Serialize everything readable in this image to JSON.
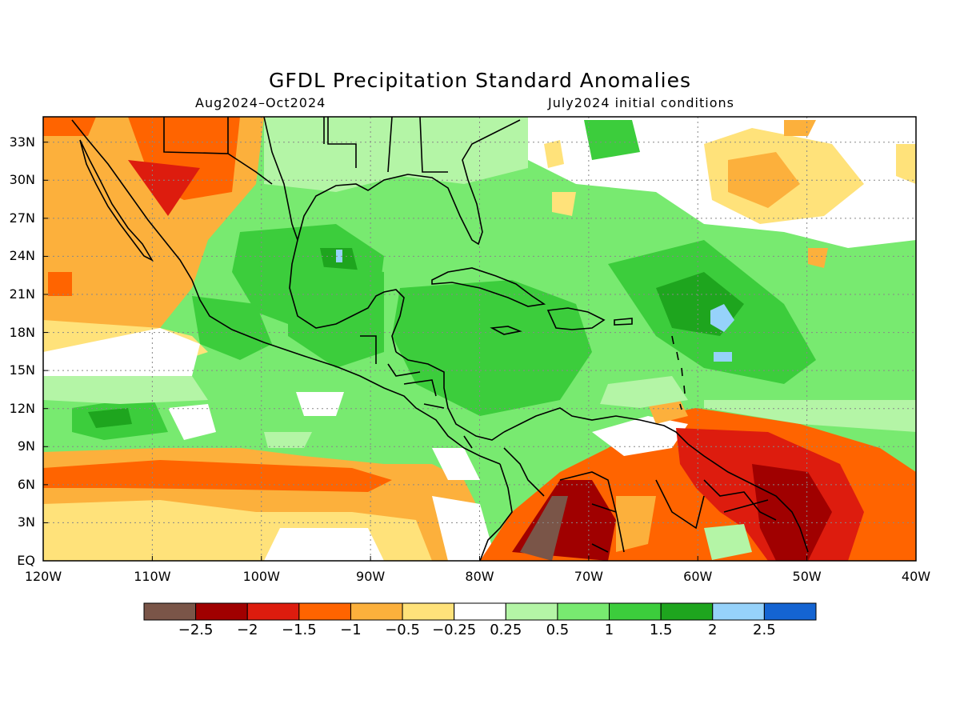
{
  "title": "GFDL Precipitation Standard Anomalies",
  "subtitle_left": "Aug2024–Oct2024",
  "subtitle_right": "July2024 initial conditions",
  "map": {
    "lon_range": [
      -120,
      -40
    ],
    "lat_range": [
      0,
      35
    ],
    "lat_ticks": [
      {
        "value": 33,
        "label": "33N"
      },
      {
        "value": 30,
        "label": "30N"
      },
      {
        "value": 27,
        "label": "27N"
      },
      {
        "value": 24,
        "label": "24N"
      },
      {
        "value": 21,
        "label": "21N"
      },
      {
        "value": 18,
        "label": "18N"
      },
      {
        "value": 15,
        "label": "15N"
      },
      {
        "value": 12,
        "label": "12N"
      },
      {
        "value": 9,
        "label": "9N"
      },
      {
        "value": 6,
        "label": "6N"
      },
      {
        "value": 3,
        "label": "3N"
      },
      {
        "value": 0,
        "label": "EQ"
      }
    ],
    "lon_ticks": [
      {
        "value": -120,
        "label": "120W"
      },
      {
        "value": -110,
        "label": "110W"
      },
      {
        "value": -100,
        "label": "100W"
      },
      {
        "value": -90,
        "label": "90W"
      },
      {
        "value": -80,
        "label": "80W"
      },
      {
        "value": -70,
        "label": "70W"
      },
      {
        "value": -60,
        "label": "60W"
      },
      {
        "value": -50,
        "label": "50W"
      },
      {
        "value": -40,
        "label": "40W"
      }
    ],
    "grid": "dotted"
  },
  "colorbar": {
    "colors": [
      "#7a5548",
      "#a00000",
      "#dd1c0e",
      "#ff6400",
      "#fcb03c",
      "#ffe27a",
      "#ffffff",
      "#b4f5a6",
      "#78ea70",
      "#3ccd3c",
      "#1ea51e",
      "#96d2fa",
      "#1464d2"
    ],
    "labels": [
      "−2.5",
      "−2",
      "−1.5",
      "−1",
      "−0.5",
      "−0.25",
      "0.25",
      "0.5",
      "1",
      "1.5",
      "2",
      "2.5"
    ]
  }
}
